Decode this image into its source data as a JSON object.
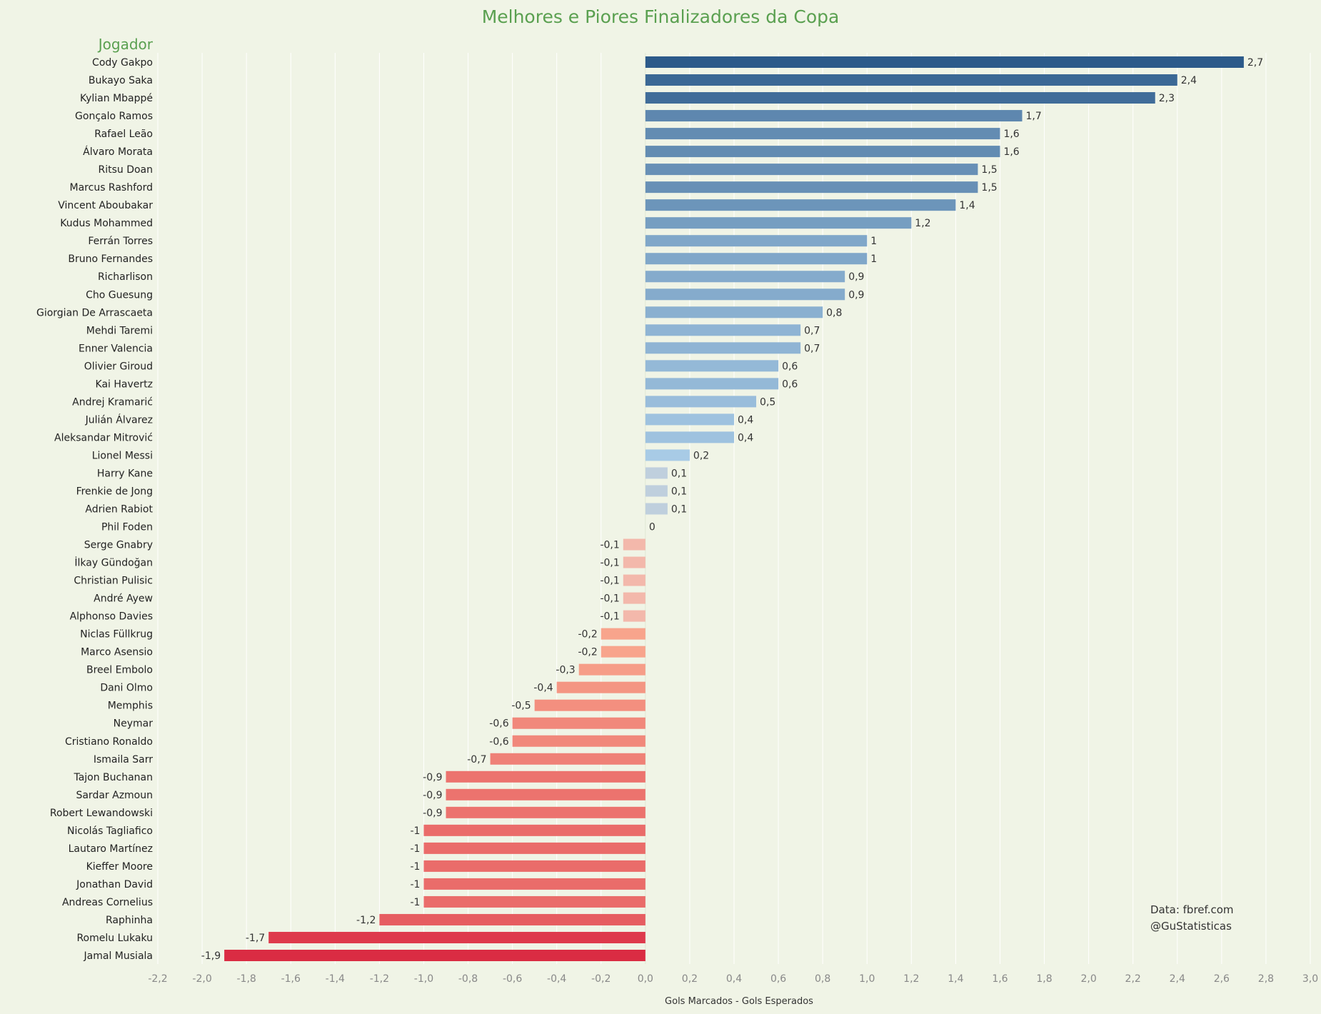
{
  "chart_data": {
    "type": "bar",
    "orientation": "horizontal",
    "title": "Melhores e Piores Finalizadores da Copa",
    "ylabel": "Jogador",
    "xlabel": "Gols Marcados - Gols Esperados",
    "xlim": [
      -2.2,
      3.0
    ],
    "xticks": [
      "-2,2",
      "-2,0",
      "-1,8",
      "-1,6",
      "-1,4",
      "-1,2",
      "-1,0",
      "-0,8",
      "-0,6",
      "-0,4",
      "-0,2",
      "0,0",
      "0,2",
      "0,4",
      "0,6",
      "0,8",
      "1,0",
      "1,2",
      "1,4",
      "1,6",
      "1,8",
      "2,0",
      "2,2",
      "2,4",
      "2,6",
      "2,8",
      "3,0"
    ],
    "grid": true,
    "credits": [
      "Data: fbref.com",
      "@GuStatisticas"
    ],
    "categories": [
      "Cody Gakpo",
      "Bukayo Saka",
      "Kylian Mbappé",
      "Gonçalo Ramos",
      "Rafael Leão",
      "Álvaro Morata",
      "Ritsu Doan",
      "Marcus Rashford",
      "Vincent Aboubakar",
      "Kudus Mohammed",
      "Ferrán Torres",
      "Bruno Fernandes",
      "Richarlison",
      "Cho Guesung",
      "Giorgian De Arrascaeta",
      "Mehdi Taremi",
      "Enner Valencia",
      "Olivier Giroud",
      "Kai Havertz",
      "Andrej Kramarić",
      "Julián Álvarez",
      "Aleksandar Mitrović",
      "Lionel Messi",
      "Harry Kane",
      "Frenkie de Jong",
      "Adrien Rabiot",
      "Phil Foden",
      "Serge Gnabry",
      "İlkay Gündoğan",
      "Christian Pulisic",
      "André Ayew",
      "Alphonso Davies",
      "Niclas Füllkrug",
      "Marco Asensio",
      "Breel Embolo",
      "Dani Olmo",
      "Memphis",
      "Neymar",
      "Cristiano Ronaldo",
      "Ismaila Sarr",
      "Tajon Buchanan",
      "Sardar Azmoun",
      "Robert Lewandowski",
      "Nicolás Tagliafico",
      "Lautaro Martínez",
      "Kieffer Moore",
      "Jonathan David",
      "Andreas Cornelius",
      "Raphinha",
      "Romelu Lukaku",
      "Jamal Musiala"
    ],
    "values": [
      2.7,
      2.4,
      2.3,
      1.7,
      1.6,
      1.6,
      1.5,
      1.5,
      1.4,
      1.2,
      1,
      1,
      0.9,
      0.9,
      0.8,
      0.7,
      0.7,
      0.6,
      0.6,
      0.5,
      0.4,
      0.4,
      0.2,
      0.1,
      0.1,
      0.1,
      0,
      -0.1,
      -0.1,
      -0.1,
      -0.1,
      -0.1,
      -0.2,
      -0.2,
      -0.3,
      -0.4,
      -0.5,
      -0.6,
      -0.6,
      -0.7,
      -0.9,
      -0.9,
      -0.9,
      -1,
      -1,
      -1,
      -1,
      -1,
      -1.2,
      -1.7,
      -1.9
    ],
    "value_labels": [
      "2,7",
      "2,4",
      "2,3",
      "1,7",
      "1,6",
      "1,6",
      "1,5",
      "1,5",
      "1,4",
      "1,2",
      "1",
      "1",
      "0,9",
      "0,9",
      "0,8",
      "0,7",
      "0,7",
      "0,6",
      "0,6",
      "0,5",
      "0,4",
      "0,4",
      "0,2",
      "0,1",
      "0,1",
      "0,1",
      "0",
      "-0,1",
      "-0,1",
      "-0,1",
      "-0,1",
      "-0,1",
      "-0,2",
      "-0,2",
      "-0,3",
      "-0,4",
      "-0,5",
      "-0,6",
      "-0,6",
      "-0,7",
      "-0,9",
      "-0,9",
      "-0,9",
      "-1",
      "-1",
      "-1",
      "-1",
      "-1",
      "-1,2",
      "-1,7",
      "-1,9"
    ],
    "colors": {
      "positive_dark": "#2c5a8a",
      "positive_light": "#a8cbe6",
      "small_positive": "#bfcfdd",
      "small_negative": "#f3b8ab",
      "negative_light": "#f8a48c",
      "negative_dark": "#da2c43",
      "title": "#5aa050"
    }
  }
}
